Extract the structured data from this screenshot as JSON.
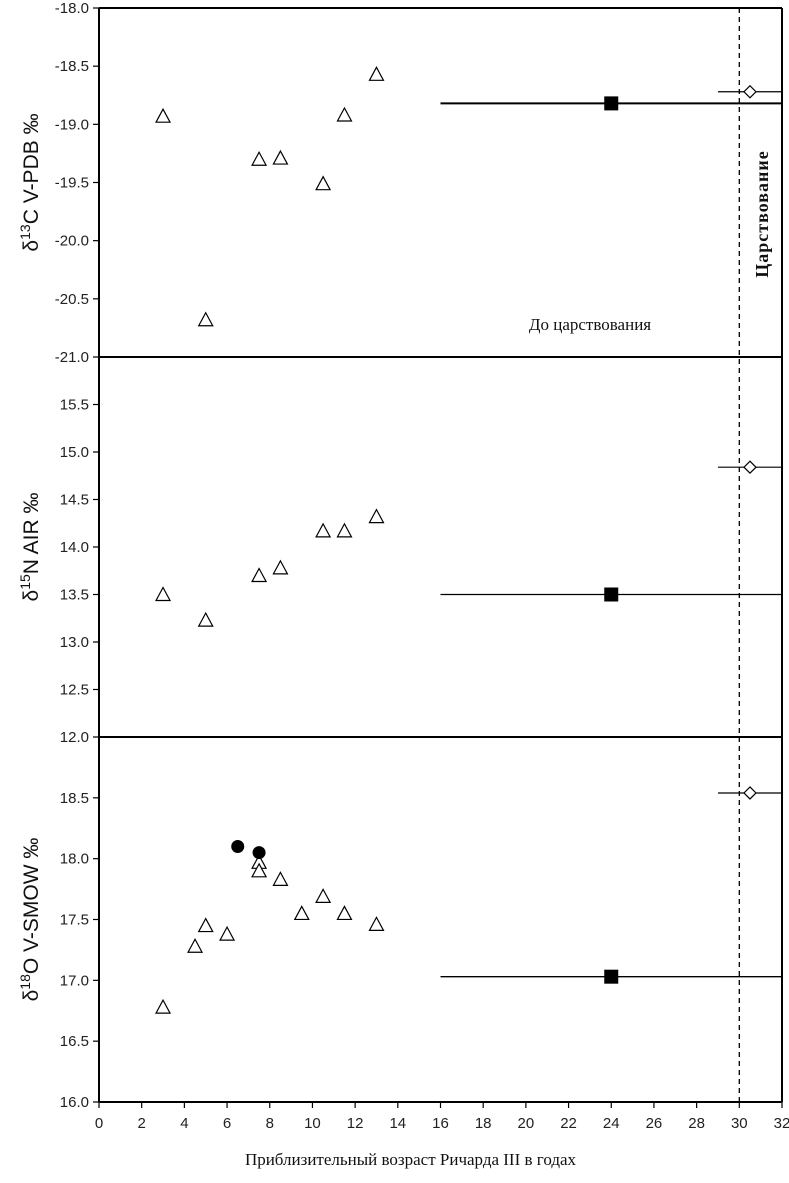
{
  "chart_data": {
    "type": "scatter",
    "xlabel": "Приблизительный возраст Ричарда III в годах",
    "xlim": [
      0,
      32
    ],
    "xticks": [
      0,
      2,
      4,
      6,
      8,
      10,
      12,
      14,
      16,
      18,
      20,
      22,
      24,
      26,
      28,
      30,
      32
    ],
    "reign_line_x": 30,
    "annotations": {
      "before_reign": "До царствования",
      "reign": "Царствование"
    },
    "panels": [
      {
        "ylabel_prefix": "δ",
        "ylabel_sup": "13",
        "ylabel_rest": "C V-PDB ‰",
        "ylim": [
          -21.0,
          -18.0
        ],
        "yticks": [
          -18.0,
          -18.5,
          -19.0,
          -19.5,
          -20.0,
          -20.5,
          -21.0
        ],
        "ytick_labels": [
          "-18.0",
          "-18.5",
          "-19.0",
          "-19.5",
          "-20.0",
          "-20.5",
          "-21.0"
        ],
        "triangles": [
          [
            3,
            -18.93
          ],
          [
            5,
            -20.68
          ],
          [
            7.5,
            -19.3
          ],
          [
            8.5,
            -19.29
          ],
          [
            10.5,
            -19.51
          ],
          [
            11.5,
            -18.92
          ],
          [
            13,
            -18.57
          ]
        ],
        "circles": [],
        "square": {
          "x": 24,
          "y": -18.82,
          "xerr": [
            16,
            32
          ]
        },
        "diamond": {
          "x": 30.5,
          "y": -18.72,
          "xerr": [
            29,
            32
          ]
        }
      },
      {
        "ylabel_prefix": "δ",
        "ylabel_sup": "15",
        "ylabel_rest": "N AIR ‰",
        "ylim": [
          12.0,
          16.0
        ],
        "yticks": [
          12.0,
          12.5,
          13.0,
          13.5,
          14.0,
          14.5,
          15.0,
          15.5
        ],
        "ytick_labels": [
          "12.0",
          "12.5",
          "13.0",
          "13.5",
          "14.0",
          "14.5",
          "15.0",
          "15.5"
        ],
        "triangles": [
          [
            3,
            13.5
          ],
          [
            5,
            13.23
          ],
          [
            7.5,
            13.7
          ],
          [
            8.5,
            13.78
          ],
          [
            10.5,
            14.17
          ],
          [
            11.5,
            14.17
          ],
          [
            13,
            14.32
          ]
        ],
        "circles": [],
        "square": {
          "x": 24,
          "y": 13.5,
          "xerr": [
            16,
            32
          ]
        },
        "diamond": {
          "x": 30.5,
          "y": 14.84,
          "xerr": [
            29,
            32
          ]
        }
      },
      {
        "ylabel_prefix": "δ",
        "ylabel_sup": "18",
        "ylabel_rest": "O V-SMOW ‰",
        "ylim": [
          16.0,
          19.0
        ],
        "yticks": [
          16.0,
          16.5,
          17.0,
          17.5,
          18.0,
          18.5
        ],
        "ytick_labels": [
          "16.0",
          "16.5",
          "17.0",
          "17.5",
          "18.0",
          "18.5"
        ],
        "triangles": [
          [
            3,
            16.78
          ],
          [
            4.5,
            17.28
          ],
          [
            5,
            17.45
          ],
          [
            6,
            17.38
          ],
          [
            7.5,
            17.97
          ],
          [
            7.5,
            17.9
          ],
          [
            8.5,
            17.83
          ],
          [
            9.5,
            17.55
          ],
          [
            10.5,
            17.69
          ],
          [
            11.5,
            17.55
          ],
          [
            13,
            17.46
          ]
        ],
        "circles": [
          [
            6.5,
            18.1
          ],
          [
            7.5,
            18.05
          ]
        ],
        "square": {
          "x": 24,
          "y": 17.03,
          "xerr": [
            16,
            32
          ]
        },
        "diamond": {
          "x": 30.5,
          "y": 18.54,
          "xerr": [
            29,
            32
          ]
        }
      }
    ]
  }
}
